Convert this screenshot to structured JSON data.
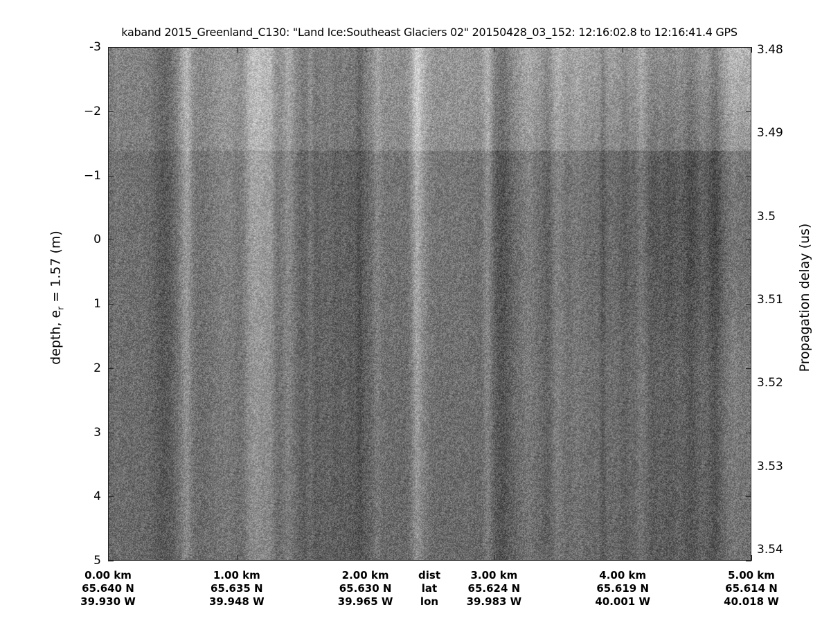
{
  "chart_data": {
    "type": "heatmap",
    "title": "kaband 2015_Greenland_C130: \"Land Ice:Southeast  Glaciers 02\"  20150428_03_152: 12:16:02.8 to 12:16:41.4 GPS",
    "colormap": "gray",
    "ylabel_left": {
      "text": "depth, e",
      "sub": "r",
      "rest": " = 1.57 (m)"
    },
    "ylabel_right": "Propagation delay (us)",
    "ylim_left": [
      -3,
      5
    ],
    "yticks_left": [
      "-3",
      "−2",
      "−1",
      "0",
      "1",
      "2",
      "3",
      "4",
      "5"
    ],
    "ylim_right": [
      3.4797,
      3.5413
    ],
    "yticks_right": [
      "3.48",
      "3.49",
      "3.5",
      "3.51",
      "3.52",
      "3.53",
      "3.54"
    ],
    "x_row_labels": [
      "dist",
      "lat",
      "lon"
    ],
    "xticks": [
      {
        "dist": "0.00 km",
        "lat": "65.640 N",
        "lon": "39.930 W",
        "km": 0
      },
      {
        "dist": "1.00 km",
        "lat": "65.635 N",
        "lon": "39.948 W",
        "km": 1
      },
      {
        "dist": "2.00 km",
        "lat": "65.630 N",
        "lon": "39.965 W",
        "km": 2
      },
      {
        "dist": "3.00 km",
        "lat": "65.624 N",
        "lon": "39.983 W",
        "km": 3
      },
      {
        "dist": "4.00 km",
        "lat": "65.619 N",
        "lon": "40.001 W",
        "km": 4
      },
      {
        "dist": "5.00 km",
        "lat": "65.614 N",
        "lon": "40.018 W",
        "km": 5
      }
    ],
    "xlim_km": [
      0,
      5
    ]
  }
}
